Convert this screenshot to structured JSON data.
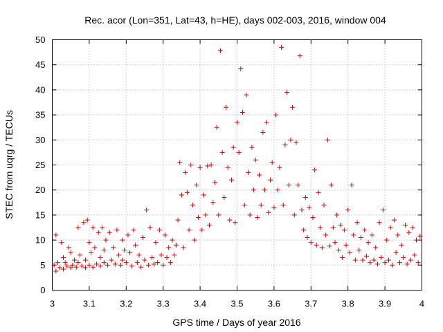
{
  "chart_data": {
    "type": "scatter",
    "title": "Rec. acor (Lon=351, Lat=43, h=HE), days 002-003, 2016, window 004",
    "xlabel": "GPS time / Days of year 2016",
    "ylabel": "STEC from uqrg / TECUs",
    "xlim": [
      3.0,
      4.0
    ],
    "ylim": [
      0,
      50
    ],
    "xticks": [
      "3",
      "3.1",
      "3.2",
      "3.3",
      "3.4",
      "3.5",
      "3.6",
      "3.7",
      "3.8",
      "3.9",
      "4"
    ],
    "yticks": [
      "0",
      "5",
      "10",
      "15",
      "20",
      "25",
      "30",
      "35",
      "40",
      "45",
      "50"
    ],
    "grid": true,
    "marker": "+",
    "color": "#d00000",
    "points": [
      [
        3.005,
        5.0
      ],
      [
        3.01,
        11.0
      ],
      [
        3.01,
        3.8
      ],
      [
        3.015,
        5.5
      ],
      [
        3.02,
        4.5
      ],
      [
        3.025,
        9.5
      ],
      [
        3.03,
        6.5
      ],
      [
        3.03,
        4.2
      ],
      [
        3.035,
        5.5
      ],
      [
        3.04,
        4.8
      ],
      [
        3.045,
        8.5
      ],
      [
        3.05,
        4.5
      ],
      [
        3.05,
        7.5
      ],
      [
        3.055,
        5.0
      ],
      [
        3.06,
        6.0
      ],
      [
        3.065,
        4.6
      ],
      [
        3.07,
        12.5
      ],
      [
        3.07,
        5.5
      ],
      [
        3.075,
        7.0
      ],
      [
        3.08,
        4.8
      ],
      [
        3.085,
        13.5
      ],
      [
        3.09,
        6.0
      ],
      [
        3.09,
        4.5
      ],
      [
        3.095,
        14.0
      ],
      [
        3.1,
        9.5
      ],
      [
        3.1,
        5.0
      ],
      [
        3.105,
        7.5
      ],
      [
        3.11,
        12.5
      ],
      [
        3.11,
        4.6
      ],
      [
        3.115,
        8.5
      ],
      [
        3.12,
        5.2
      ],
      [
        3.125,
        11.5
      ],
      [
        3.13,
        6.5
      ],
      [
        3.13,
        4.8
      ],
      [
        3.135,
        12.5
      ],
      [
        3.14,
        8.0
      ],
      [
        3.14,
        5.5
      ],
      [
        3.145,
        10.0
      ],
      [
        3.15,
        5.0
      ],
      [
        3.155,
        11.5
      ],
      [
        3.16,
        6.0
      ],
      [
        3.165,
        8.5
      ],
      [
        3.17,
        5.2
      ],
      [
        3.175,
        12.0
      ],
      [
        3.18,
        7.0
      ],
      [
        3.185,
        5.0
      ],
      [
        3.19,
        10.0
      ],
      [
        3.19,
        6.0
      ],
      [
        3.195,
        8.0
      ],
      [
        3.2,
        5.5
      ],
      [
        3.205,
        11.0
      ],
      [
        3.21,
        7.5
      ],
      [
        3.215,
        4.8
      ],
      [
        3.22,
        12.0
      ],
      [
        3.225,
        9.0
      ],
      [
        3.23,
        5.5
      ],
      [
        3.235,
        7.0
      ],
      [
        3.24,
        4.6
      ],
      [
        3.245,
        10.5
      ],
      [
        3.25,
        6.0
      ],
      [
        3.255,
        16.0
      ],
      [
        3.26,
        5.0
      ],
      [
        3.265,
        12.5
      ],
      [
        3.27,
        6.5
      ],
      [
        3.275,
        5.2
      ],
      [
        3.28,
        9.5
      ],
      [
        3.285,
        5.5
      ],
      [
        3.29,
        12.0
      ],
      [
        3.295,
        7.0
      ],
      [
        3.3,
        5.0
      ],
      [
        3.305,
        11.0
      ],
      [
        3.31,
        6.5
      ],
      [
        3.315,
        8.5
      ],
      [
        3.32,
        5.5
      ],
      [
        3.325,
        10.0
      ],
      [
        3.33,
        7.0
      ],
      [
        3.335,
        9.0
      ],
      [
        3.34,
        14.0
      ],
      [
        3.345,
        25.5
      ],
      [
        3.35,
        19.0
      ],
      [
        3.355,
        8.5
      ],
      [
        3.36,
        23.5
      ],
      [
        3.365,
        19.5
      ],
      [
        3.37,
        12.0
      ],
      [
        3.375,
        25.0
      ],
      [
        3.38,
        17.0
      ],
      [
        3.385,
        10.0
      ],
      [
        3.39,
        21.0
      ],
      [
        3.395,
        14.5
      ],
      [
        3.4,
        24.5
      ],
      [
        3.405,
        12.0
      ],
      [
        3.41,
        19.0
      ],
      [
        3.415,
        15.0
      ],
      [
        3.42,
        24.8
      ],
      [
        3.425,
        13.0
      ],
      [
        3.43,
        25.0
      ],
      [
        3.435,
        17.5
      ],
      [
        3.44,
        21.5
      ],
      [
        3.445,
        32.5
      ],
      [
        3.45,
        15.0
      ],
      [
        3.455,
        47.8
      ],
      [
        3.46,
        27.5
      ],
      [
        3.465,
        18.5
      ],
      [
        3.47,
        36.5
      ],
      [
        3.475,
        24.5
      ],
      [
        3.48,
        14.0
      ],
      [
        3.485,
        22.0
      ],
      [
        3.49,
        28.5
      ],
      [
        3.495,
        13.5
      ],
      [
        3.5,
        33.5
      ],
      [
        3.505,
        27.5
      ],
      [
        3.51,
        44.2
      ],
      [
        3.515,
        35.5
      ],
      [
        3.52,
        17.0
      ],
      [
        3.525,
        39.0
      ],
      [
        3.53,
        23.5
      ],
      [
        3.535,
        15.0
      ],
      [
        3.54,
        28.5
      ],
      [
        3.545,
        20.0
      ],
      [
        3.55,
        26.0
      ],
      [
        3.555,
        14.5
      ],
      [
        3.56,
        23.0
      ],
      [
        3.565,
        17.0
      ],
      [
        3.57,
        31.5
      ],
      [
        3.575,
        20.0
      ],
      [
        3.58,
        33.5
      ],
      [
        3.585,
        15.5
      ],
      [
        3.59,
        22.0
      ],
      [
        3.595,
        25.5
      ],
      [
        3.6,
        16.5
      ],
      [
        3.605,
        35.0
      ],
      [
        3.61,
        20.0
      ],
      [
        3.615,
        24.5
      ],
      [
        3.62,
        48.5
      ],
      [
        3.625,
        17.0
      ],
      [
        3.63,
        29.0
      ],
      [
        3.635,
        39.5
      ],
      [
        3.64,
        21.0
      ],
      [
        3.645,
        30.0
      ],
      [
        3.65,
        36.5
      ],
      [
        3.655,
        15.0
      ],
      [
        3.66,
        29.5
      ],
      [
        3.665,
        21.0
      ],
      [
        3.67,
        46.8
      ],
      [
        3.675,
        16.0
      ],
      [
        3.68,
        12.0
      ],
      [
        3.685,
        18.5
      ],
      [
        3.69,
        10.5
      ],
      [
        3.695,
        16.5
      ],
      [
        3.7,
        9.5
      ],
      [
        3.705,
        14.5
      ],
      [
        3.71,
        24.0
      ],
      [
        3.715,
        9.0
      ],
      [
        3.72,
        19.5
      ],
      [
        3.725,
        12.5
      ],
      [
        3.73,
        8.5
      ],
      [
        3.735,
        17.0
      ],
      [
        3.74,
        11.0
      ],
      [
        3.745,
        30.0
      ],
      [
        3.75,
        8.8
      ],
      [
        3.755,
        21.0
      ],
      [
        3.76,
        12.5
      ],
      [
        3.765,
        9.5
      ],
      [
        3.77,
        15.0
      ],
      [
        3.775,
        8.0
      ],
      [
        3.78,
        13.0
      ],
      [
        3.785,
        6.5
      ],
      [
        3.79,
        12.0
      ],
      [
        3.795,
        9.0
      ],
      [
        3.8,
        16.0
      ],
      [
        3.805,
        7.5
      ],
      [
        3.81,
        21.0
      ],
      [
        3.815,
        11.0
      ],
      [
        3.82,
        6.0
      ],
      [
        3.825,
        13.5
      ],
      [
        3.83,
        8.0
      ],
      [
        3.835,
        10.5
      ],
      [
        3.84,
        6.0
      ],
      [
        3.845,
        12.0
      ],
      [
        3.85,
        6.8
      ],
      [
        3.855,
        9.5
      ],
      [
        3.86,
        5.5
      ],
      [
        3.865,
        11.0
      ],
      [
        3.87,
        6.0
      ],
      [
        3.875,
        8.5
      ],
      [
        3.88,
        5.2
      ],
      [
        3.885,
        13.5
      ],
      [
        3.89,
        6.5
      ],
      [
        3.895,
        16.0
      ],
      [
        3.9,
        5.5
      ],
      [
        3.905,
        10.0
      ],
      [
        3.91,
        6.0
      ],
      [
        3.915,
        12.5
      ],
      [
        3.92,
        5.0
      ],
      [
        3.925,
        14.0
      ],
      [
        3.93,
        7.5
      ],
      [
        3.935,
        11.0
      ],
      [
        3.94,
        5.5
      ],
      [
        3.945,
        9.0
      ],
      [
        3.95,
        6.5
      ],
      [
        3.955,
        13.0
      ],
      [
        3.96,
        5.2
      ],
      [
        3.965,
        11.5
      ],
      [
        3.97,
        6.0
      ],
      [
        3.975,
        12.5
      ],
      [
        3.98,
        7.0
      ],
      [
        3.985,
        10.0
      ],
      [
        3.99,
        5.5
      ],
      [
        3.995,
        10.8
      ]
    ]
  }
}
